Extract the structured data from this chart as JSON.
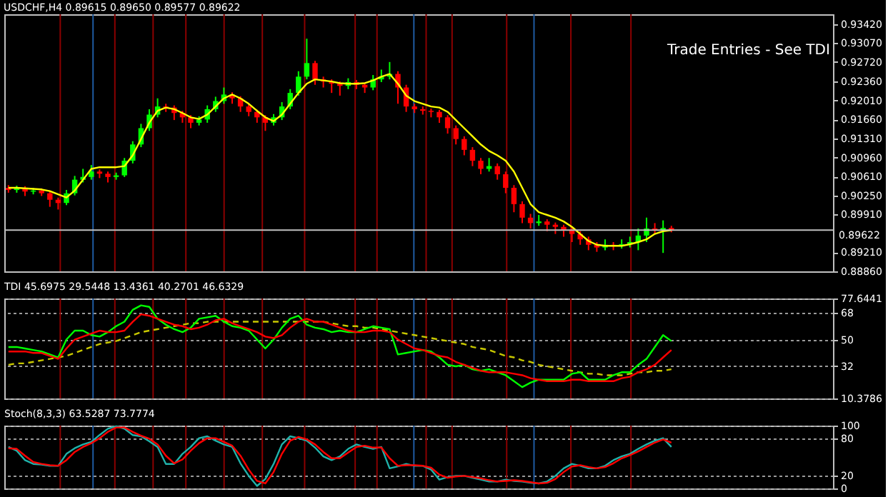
{
  "chart_data": [
    {
      "type": "candlestick",
      "title": "USDCHF,H4 0.89615 0.89650 0.89577 0.89622",
      "categories": [
        null,
        null,
        null,
        null,
        null,
        null,
        null,
        null,
        null,
        null,
        null,
        null,
        null,
        null,
        null,
        null,
        null,
        null,
        null,
        null,
        null,
        null,
        null,
        null,
        null,
        null,
        null,
        null,
        null,
        null,
        null,
        null,
        null,
        null,
        null,
        null,
        null,
        null,
        null,
        null,
        null,
        null,
        null,
        null,
        null,
        null,
        null,
        null,
        null,
        null,
        null,
        null,
        null,
        null,
        null,
        null,
        null,
        null,
        null,
        null,
        null,
        null,
        null,
        null,
        null,
        null,
        null,
        null,
        null,
        null,
        null,
        null,
        null,
        null,
        null,
        null,
        null,
        null,
        null,
        null,
        null,
        null,
        null,
        null,
        null,
        null,
        null,
        null,
        null,
        null,
        null,
        null,
        null,
        null,
        null,
        null,
        null,
        null,
        null,
        null
      ],
      "ohlc": [
        [
          0.904,
          0.9045,
          0.9031,
          0.9036
        ],
        [
          0.9036,
          0.9044,
          0.9031,
          0.9039
        ],
        [
          0.9039,
          0.9043,
          0.9025,
          0.9033
        ],
        [
          0.9033,
          0.904,
          0.9028,
          0.9035
        ],
        [
          0.9035,
          0.9039,
          0.9025,
          0.903
        ],
        [
          0.903,
          0.9034,
          0.9005,
          0.9018
        ],
        [
          0.9018,
          0.9022,
          0.9,
          0.9012
        ],
        [
          0.9012,
          0.9036,
          0.9008,
          0.903
        ],
        [
          0.903,
          0.9062,
          0.9026,
          0.9055
        ],
        [
          0.9055,
          0.9075,
          0.905,
          0.906
        ],
        [
          0.906,
          0.9082,
          0.9055,
          0.907
        ],
        [
          0.907,
          0.9074,
          0.9058,
          0.9066
        ],
        [
          0.9066,
          0.907,
          0.905,
          0.906
        ],
        [
          0.906,
          0.9068,
          0.9055,
          0.9063
        ],
        [
          0.9063,
          0.9095,
          0.906,
          0.909
        ],
        [
          0.909,
          0.9126,
          0.9085,
          0.912
        ],
        [
          0.912,
          0.9158,
          0.9115,
          0.915
        ],
        [
          0.915,
          0.9185,
          0.9145,
          0.9175
        ],
        [
          0.9175,
          0.9205,
          0.917,
          0.919
        ],
        [
          0.919,
          0.9195,
          0.918,
          0.9188
        ],
        [
          0.9188,
          0.9192,
          0.9165,
          0.9178
        ],
        [
          0.9178,
          0.9182,
          0.916,
          0.917
        ],
        [
          0.917,
          0.9174,
          0.915,
          0.916
        ],
        [
          0.916,
          0.9172,
          0.9155,
          0.9166
        ],
        [
          0.9166,
          0.9192,
          0.916,
          0.9185
        ],
        [
          0.9185,
          0.9208,
          0.918,
          0.92
        ],
        [
          0.92,
          0.9225,
          0.9195,
          0.9212
        ],
        [
          0.9212,
          0.9216,
          0.9195,
          0.9205
        ],
        [
          0.9205,
          0.9209,
          0.918,
          0.919
        ],
        [
          0.919,
          0.9195,
          0.9172,
          0.918
        ],
        [
          0.918,
          0.9184,
          0.916,
          0.917
        ],
        [
          0.917,
          0.9174,
          0.9145,
          0.916
        ],
        [
          0.916,
          0.9176,
          0.9155,
          0.917
        ],
        [
          0.917,
          0.9198,
          0.9165,
          0.919
        ],
        [
          0.919,
          0.9222,
          0.9185,
          0.9215
        ],
        [
          0.9215,
          0.9255,
          0.921,
          0.9245
        ],
        [
          0.9245,
          0.9315,
          0.924,
          0.927
        ],
        [
          0.927,
          0.9274,
          0.923,
          0.924
        ],
        [
          0.924,
          0.9245,
          0.9225,
          0.9236
        ],
        [
          0.9236,
          0.924,
          0.9215,
          0.9232
        ],
        [
          0.9232,
          0.9236,
          0.921,
          0.9228
        ],
        [
          0.9228,
          0.9242,
          0.9222,
          0.9235
        ],
        [
          0.9235,
          0.9239,
          0.9222,
          0.923
        ],
        [
          0.923,
          0.9234,
          0.9215,
          0.9225
        ],
        [
          0.9225,
          0.9248,
          0.922,
          0.924
        ],
        [
          0.924,
          0.9258,
          0.9235,
          0.9245
        ],
        [
          0.9245,
          0.9272,
          0.924,
          0.925
        ],
        [
          0.925,
          0.9255,
          0.9195,
          0.9225
        ],
        [
          0.9225,
          0.923,
          0.918,
          0.919
        ],
        [
          0.919,
          0.9195,
          0.9178,
          0.9185
        ],
        [
          0.9185,
          0.919,
          0.9175,
          0.9182
        ],
        [
          0.9182,
          0.9186,
          0.917,
          0.918
        ],
        [
          0.918,
          0.9184,
          0.916,
          0.917
        ],
        [
          0.917,
          0.9174,
          0.914,
          0.915
        ],
        [
          0.915,
          0.9155,
          0.912,
          0.913
        ],
        [
          0.913,
          0.9135,
          0.91,
          0.911
        ],
        [
          0.911,
          0.9115,
          0.908,
          0.909
        ],
        [
          0.909,
          0.9095,
          0.9065,
          0.9075
        ],
        [
          0.9075,
          0.9095,
          0.907,
          0.908
        ],
        [
          0.908,
          0.9085,
          0.9055,
          0.9065
        ],
        [
          0.9065,
          0.907,
          0.903,
          0.904
        ],
        [
          0.904,
          0.9045,
          0.8995,
          0.901
        ],
        [
          0.901,
          0.9015,
          0.8975,
          0.8985
        ],
        [
          0.8985,
          0.8992,
          0.8965,
          0.8975
        ],
        [
          0.8975,
          0.899,
          0.897,
          0.8978
        ],
        [
          0.8978,
          0.8982,
          0.896,
          0.8972
        ],
        [
          0.8972,
          0.8976,
          0.8955,
          0.8968
        ],
        [
          0.8968,
          0.8972,
          0.895,
          0.8962
        ],
        [
          0.8962,
          0.8966,
          0.894,
          0.8955
        ],
        [
          0.8955,
          0.896,
          0.8935,
          0.8945
        ],
        [
          0.8945,
          0.895,
          0.8925,
          0.8935
        ],
        [
          0.8935,
          0.894,
          0.8922,
          0.893
        ],
        [
          0.893,
          0.8945,
          0.8925,
          0.8935
        ],
        [
          0.8935,
          0.894,
          0.8925,
          0.8932
        ],
        [
          0.8932,
          0.8945,
          0.8928,
          0.8936
        ],
        [
          0.8936,
          0.895,
          0.893,
          0.894
        ],
        [
          0.894,
          0.8965,
          0.8925,
          0.8952
        ],
        [
          0.8952,
          0.8985,
          0.894,
          0.8965
        ],
        [
          0.8965,
          0.8975,
          0.8955,
          0.8962
        ],
        [
          0.8962,
          0.898,
          0.892,
          0.8966
        ],
        [
          0.8966,
          0.897,
          0.8958,
          0.8962
        ],
        null,
        null,
        null,
        null,
        null,
        null,
        null,
        null,
        null,
        null,
        null,
        null,
        null,
        null,
        null,
        null,
        null,
        null,
        null
      ],
      "colors": [
        "#ff0000",
        "#00ff00",
        "#ff0000",
        "#00ff00",
        "#ff0000",
        "#ff0000",
        "#ff0000",
        "#00ff00",
        "#00ff00",
        "#00ff00",
        "#00ff00",
        "#ff0000",
        "#ff0000",
        "#00ff00",
        "#00ff00",
        "#00ff00",
        "#00ff00",
        "#00ff00",
        "#00ff00",
        "#ff0000",
        "#ff0000",
        "#ff0000",
        "#ff0000",
        "#00ff00",
        "#00ff00",
        "#00ff00",
        "#00ff00",
        "#ff0000",
        "#ff0000",
        "#ff0000",
        "#ff0000",
        "#ff0000",
        "#00ff00",
        "#00ff00",
        "#00ff00",
        "#00ff00",
        "#00ff00",
        "#ff0000",
        "#ff0000",
        "#ff0000",
        "#ff0000",
        "#00ff00",
        "#ff0000",
        "#ff0000",
        "#00ff00",
        "#00ff00",
        "#00ff00",
        "#ff0000",
        "#ff0000",
        "#ff0000",
        "#ff0000",
        "#ff0000",
        "#ff0000",
        "#ff0000",
        "#ff0000",
        "#ff0000",
        "#ff0000",
        "#ff0000",
        "#00ff00",
        "#ff0000",
        "#ff0000",
        "#ff0000",
        "#ff0000",
        "#ff0000",
        "#00ff00",
        "#ff0000",
        "#ff0000",
        "#ff0000",
        "#ff0000",
        "#ff0000",
        "#ff0000",
        "#ff0000",
        "#00ff00",
        "#ff0000",
        "#00ff00",
        "#00ff00",
        "#00ff00",
        "#00ff00",
        "#ff0000",
        "#00ff00",
        "#ff0000",
        null,
        null,
        null,
        null,
        null,
        null,
        null,
        null,
        null,
        null,
        null,
        null,
        null,
        null,
        null,
        null,
        null,
        null,
        null
      ],
      "series": [
        {
          "type": "line",
          "color": "#ffff00",
          "values": [
            0.904,
            0.904,
            0.9039,
            0.9038,
            0.9037,
            0.9034,
            0.9028,
            0.9022,
            0.9035,
            0.9055,
            0.9075,
            0.9078,
            0.9078,
            0.9078,
            0.908,
            0.91,
            0.913,
            0.916,
            0.9182,
            0.9188,
            0.9185,
            0.9178,
            0.917,
            0.9167,
            0.9175,
            0.919,
            0.9205,
            0.9212,
            0.9205,
            0.9195,
            0.9182,
            0.917,
            0.9163,
            0.9175,
            0.9195,
            0.9215,
            0.9232,
            0.924,
            0.9238,
            0.9236,
            0.9233,
            0.9232,
            0.9232,
            0.9233,
            0.9238,
            0.9245,
            0.925,
            0.9232,
            0.921,
            0.92,
            0.9195,
            0.919,
            0.9188,
            0.918,
            0.9165,
            0.915,
            0.9135,
            0.912,
            0.9108,
            0.91,
            0.909,
            0.907,
            0.904,
            0.901,
            0.8995,
            0.899,
            0.8985,
            0.8978,
            0.8968,
            0.8955,
            0.8942,
            0.8935,
            0.8933,
            0.8933,
            0.8933,
            0.8936,
            0.894,
            0.8945,
            0.8955,
            0.896,
            0.8962,
            null,
            null,
            null,
            null,
            null,
            null,
            null,
            null,
            null,
            null,
            null,
            null,
            null,
            null,
            null,
            null,
            null,
            null,
            null
          ]
        }
      ],
      "ylim": [
        0.8886,
        0.936
      ],
      "yticks": [
        {
          "value": 0.9342,
          "label": "0.93420"
        },
        {
          "value": 0.9307,
          "label": "0.93070"
        },
        {
          "value": 0.9272,
          "label": "0.92720"
        },
        {
          "value": 0.9236,
          "label": "0.92360"
        },
        {
          "value": 0.9201,
          "label": "0.92010"
        },
        {
          "value": 0.9166,
          "label": "0.91660"
        },
        {
          "value": 0.9131,
          "label": "0.91310"
        },
        {
          "value": 0.9096,
          "label": "0.90960"
        },
        {
          "value": 0.9061,
          "label": "0.90610"
        },
        {
          "value": 0.9025,
          "label": "0.90250"
        },
        {
          "value": 0.8991,
          "label": "0.89910"
        },
        {
          "value": 0.8921,
          "label": "0.89210"
        },
        {
          "value": 0.8886,
          "label": "0.88860"
        }
      ],
      "ref_lines": [
        {
          "axis": "y",
          "value": 0.89622,
          "label": "0.89622",
          "color": "#c0c0c0"
        }
      ],
      "annotations": [
        "Trade Entries - See TDI"
      ],
      "tick_labels": "y"
    },
    {
      "type": "line",
      "title": "TDI 45.6975 29.5448 13.4361 40.2701 46.6329",
      "categories": [
        null,
        null,
        null,
        null,
        null,
        null,
        null,
        null,
        null,
        null,
        null,
        null,
        null,
        null,
        null,
        null,
        null,
        null,
        null,
        null,
        null,
        null,
        null,
        null,
        null,
        null,
        null,
        null,
        null,
        null,
        null,
        null,
        null,
        null,
        null,
        null,
        null,
        null,
        null,
        null,
        null,
        null,
        null,
        null,
        null,
        null,
        null,
        null,
        null,
        null,
        null,
        null,
        null,
        null,
        null,
        null,
        null,
        null,
        null,
        null,
        null,
        null,
        null,
        null,
        null,
        null,
        null,
        null,
        null,
        null,
        null,
        null,
        null,
        null,
        null,
        null,
        null,
        null,
        null,
        null,
        null,
        null,
        null,
        null,
        null,
        null,
        null,
        null,
        null,
        null,
        null,
        null,
        null,
        null,
        null,
        null,
        null,
        null,
        null,
        null
      ],
      "series": [
        {
          "color": "#c8c800",
          "line_style": "dashed",
          "values": [
            33,
            34,
            34,
            35,
            36,
            37,
            38,
            39,
            41,
            43,
            45,
            47,
            48,
            49,
            51,
            53,
            55,
            56,
            57,
            58,
            59,
            60,
            61,
            61,
            62,
            62,
            62,
            62,
            62,
            62,
            62,
            62,
            62,
            62,
            62,
            62,
            62,
            62,
            62,
            61,
            60,
            59,
            59,
            58,
            58,
            57,
            56,
            55,
            54,
            53,
            52,
            51,
            50,
            49,
            48,
            47,
            45,
            44,
            43,
            41,
            39,
            38,
            36,
            35,
            33,
            32,
            31,
            30,
            29,
            28,
            27,
            27,
            26,
            26,
            26,
            27,
            28,
            28,
            29,
            29,
            30,
            null,
            null,
            null,
            null,
            null,
            null,
            null,
            null,
            null,
            null,
            null,
            null,
            null,
            null,
            null,
            null,
            null,
            null,
            null
          ]
        },
        {
          "color": "#00ff00",
          "values": [
            45,
            45,
            44,
            43,
            42,
            40,
            38,
            50,
            56,
            56,
            53,
            52,
            55,
            59,
            62,
            70,
            73,
            72,
            64,
            60,
            57,
            55,
            58,
            64,
            65,
            66,
            62,
            59,
            58,
            56,
            50,
            44,
            50,
            58,
            64,
            66,
            60,
            58,
            57,
            55,
            56,
            55,
            55,
            57,
            59,
            58,
            57,
            40,
            41,
            42,
            43,
            42,
            38,
            33,
            32,
            33,
            30,
            29,
            30,
            28,
            26,
            22,
            18,
            21,
            23,
            23,
            23,
            23,
            27,
            28,
            23,
            23,
            23,
            26,
            28,
            28,
            33,
            37,
            45,
            53,
            49,
            null,
            null,
            null,
            null,
            null,
            null,
            null,
            null,
            null,
            null,
            null,
            null,
            null,
            null,
            null,
            null,
            null,
            null,
            null
          ]
        },
        {
          "color": "#ff0000",
          "values": [
            42,
            42,
            42,
            41,
            41,
            39,
            37,
            44,
            50,
            52,
            54,
            56,
            55,
            55,
            56,
            62,
            67,
            66,
            64,
            62,
            60,
            59,
            57,
            58,
            60,
            63,
            64,
            61,
            59,
            57,
            55,
            52,
            51,
            53,
            58,
            62,
            64,
            62,
            62,
            60,
            58,
            56,
            55,
            55,
            56,
            56,
            55,
            50,
            47,
            44,
            43,
            41,
            39,
            38,
            35,
            33,
            31,
            29,
            28,
            28,
            28,
            27,
            26,
            24,
            23,
            22,
            22,
            22,
            23,
            23,
            22,
            22,
            22,
            22,
            24,
            25,
            28,
            30,
            33,
            38,
            43,
            null,
            null,
            null,
            null,
            null,
            null,
            null,
            null,
            null,
            null,
            null,
            null,
            null,
            null,
            null,
            null,
            null,
            null,
            null
          ]
        }
      ],
      "ylim": [
        10.3786,
        77.6441
      ],
      "yticks": [
        {
          "value": 77.6441,
          "label": "77.6441"
        },
        68,
        50,
        32,
        {
          "value": 10.3786,
          "label": "10.3786"
        }
      ],
      "grid": "y",
      "tick_labels": "y"
    },
    {
      "type": "line",
      "title": "Stoch(8,3,3) 63.5287 73.7774",
      "categories": [
        null,
        null,
        null,
        null,
        null,
        null,
        null,
        null,
        null,
        null,
        null,
        null,
        null,
        null,
        null,
        null,
        null,
        null,
        null,
        null,
        null,
        null,
        null,
        null,
        null,
        null,
        null,
        null,
        null,
        null,
        null,
        null,
        null,
        null,
        null,
        null,
        null,
        null,
        null,
        null,
        null,
        null,
        null,
        null,
        null,
        null,
        null,
        null,
        null,
        null,
        null,
        null,
        null,
        null,
        null,
        null,
        null,
        null,
        null,
        null,
        null,
        null,
        null,
        null,
        null,
        null,
        null,
        null,
        null,
        null,
        null,
        null,
        null,
        null,
        null,
        null,
        null,
        null,
        null,
        null,
        null,
        null,
        null,
        null,
        null,
        null,
        null,
        null,
        null,
        null,
        null,
        null,
        null,
        null,
        null,
        null,
        null,
        null,
        null,
        null
      ],
      "series": [
        {
          "color": "#20b2aa",
          "values": [
            66,
            60,
            45,
            39,
            38,
            36,
            36,
            55,
            64,
            70,
            74,
            85,
            95,
            99,
            95,
            85,
            83,
            75,
            66,
            39,
            39,
            55,
            66,
            80,
            83,
            76,
            70,
            66,
            40,
            20,
            4,
            15,
            39,
            70,
            83,
            80,
            76,
            65,
            51,
            45,
            51,
            63,
            70,
            66,
            63,
            66,
            32,
            35,
            39,
            36,
            36,
            30,
            14,
            18,
            20,
            20,
            17,
            14,
            11,
            11,
            14,
            12,
            11,
            9,
            8,
            11,
            20,
            32,
            39,
            36,
            32,
            32,
            36,
            45,
            51,
            55,
            63,
            70,
            76,
            80,
            66,
            null,
            null,
            null,
            null,
            null,
            null,
            null,
            null,
            null,
            null,
            null,
            null,
            null,
            null,
            null,
            null,
            null,
            null,
            null
          ]
        },
        {
          "color": "#ff0000",
          "values": [
            64,
            63,
            52,
            42,
            39,
            37,
            36,
            45,
            58,
            66,
            72,
            80,
            90,
            97,
            97,
            90,
            84,
            79,
            70,
            52,
            40,
            46,
            60,
            72,
            80,
            80,
            74,
            68,
            52,
            30,
            12,
            8,
            26,
            55,
            76,
            82,
            78,
            70,
            58,
            48,
            48,
            57,
            66,
            68,
            65,
            65,
            48,
            36,
            37,
            37,
            36,
            33,
            22,
            17,
            19,
            20,
            18,
            16,
            13,
            11,
            12,
            13,
            12,
            10,
            8,
            9,
            15,
            26,
            35,
            37,
            34,
            32,
            34,
            40,
            48,
            53,
            59,
            66,
            73,
            78,
            73,
            null,
            null,
            null,
            null,
            null,
            null,
            null,
            null,
            null,
            null,
            null,
            null,
            null,
            null,
            null,
            null,
            null,
            null,
            null
          ]
        }
      ],
      "ylim": [
        0,
        100
      ],
      "yticks": [
        0,
        20,
        80,
        100
      ],
      "grid": "y",
      "tick_labels": "y"
    }
  ]
}
